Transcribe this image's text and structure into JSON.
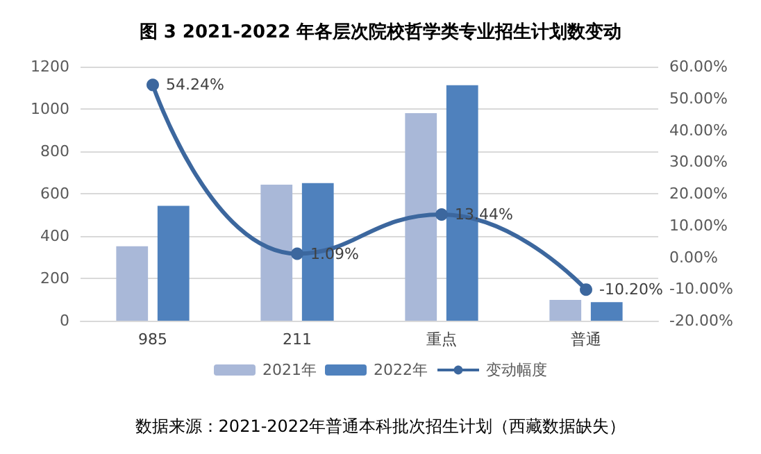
{
  "chart_data": {
    "type": "bar",
    "title": "图 3 2021-2022 年各层次院校哲学类专业招生计划数变动",
    "annotations": [
      "数据来源：2021-2022年普通本科批次招生计划（西藏数据缺失）"
    ],
    "categories": [
      "985",
      "211",
      "重点",
      "普通"
    ],
    "series": [
      {
        "name": "2021年",
        "color": "#a9b8d8",
        "values": [
          352,
          643,
          980,
          98
        ]
      },
      {
        "name": "2022年",
        "color": "#4f81bd",
        "values": [
          543,
          650,
          1112,
          88
        ]
      },
      {
        "name": "变动幅度",
        "type": "line",
        "axis": "y2",
        "color": "#3c679e",
        "values": [
          54.24,
          1.09,
          13.44,
          -10.2
        ],
        "value_labels": [
          "54.24%",
          "1.09%",
          "13.44%",
          "-10.20%"
        ]
      }
    ],
    "ylim": [
      0,
      1200
    ],
    "yticks": [
      0,
      200,
      400,
      600,
      800,
      1000,
      1200
    ],
    "y2lim": [
      -20,
      60
    ],
    "y2ticks": [
      {
        "value": -20,
        "label": "-20.00%"
      },
      {
        "value": -10,
        "label": "-10.00%"
      },
      {
        "value": 0,
        "label": "0.00%"
      },
      {
        "value": 10,
        "label": "10.00%"
      },
      {
        "value": 20,
        "label": "20.00%"
      },
      {
        "value": 30,
        "label": "30.00%"
      },
      {
        "value": 40,
        "label": "40.00%"
      },
      {
        "value": 50,
        "label": "50.00%"
      },
      {
        "value": 60,
        "label": "60.00%"
      }
    ],
    "grid": "y",
    "legend": "bottom",
    "marker": "circle"
  }
}
